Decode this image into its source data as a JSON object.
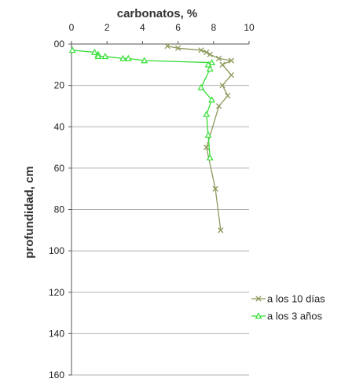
{
  "chart_data": {
    "type": "scatter",
    "xlabel": "carbonatos,  %",
    "ylabel": "profundidad,  cm",
    "xlim": [
      0,
      10
    ],
    "ylim": [
      0,
      160
    ],
    "y_inverted": true,
    "x_axis_position": "top",
    "x_ticks": [
      0,
      2,
      4,
      6,
      8,
      10
    ],
    "y_ticks": [
      0,
      20,
      40,
      60,
      80,
      100,
      120,
      140,
      160
    ],
    "y_tick_labels": [
      "00",
      "20",
      "40",
      "60",
      "80",
      "100",
      "120",
      "140",
      "160"
    ],
    "grid": "horizontal",
    "legend_position": "right",
    "series": [
      {
        "name": "a los 10 días",
        "color": "#8c9a5b",
        "marker": "x",
        "points": [
          {
            "x": 5.4,
            "y": 1
          },
          {
            "x": 6.0,
            "y": 2
          },
          {
            "x": 7.3,
            "y": 3
          },
          {
            "x": 7.6,
            "y": 4
          },
          {
            "x": 7.8,
            "y": 5
          },
          {
            "x": 8.3,
            "y": 7
          },
          {
            "x": 9.0,
            "y": 8
          },
          {
            "x": 8.5,
            "y": 10
          },
          {
            "x": 9.0,
            "y": 15
          },
          {
            "x": 8.5,
            "y": 20
          },
          {
            "x": 8.8,
            "y": 25
          },
          {
            "x": 8.3,
            "y": 30
          },
          {
            "x": 7.6,
            "y": 50
          },
          {
            "x": 8.1,
            "y": 70
          },
          {
            "x": 8.4,
            "y": 90
          }
        ]
      },
      {
        "name": "a los 3 años",
        "color": "#33dd33",
        "marker": "triangle",
        "points": [
          {
            "x": 0.05,
            "y": 3
          },
          {
            "x": 1.3,
            "y": 4
          },
          {
            "x": 1.5,
            "y": 5
          },
          {
            "x": 1.5,
            "y": 6
          },
          {
            "x": 1.9,
            "y": 6
          },
          {
            "x": 2.9,
            "y": 7
          },
          {
            "x": 3.2,
            "y": 7
          },
          {
            "x": 4.1,
            "y": 8
          },
          {
            "x": 7.9,
            "y": 9
          },
          {
            "x": 7.7,
            "y": 10
          },
          {
            "x": 7.8,
            "y": 12
          },
          {
            "x": 7.3,
            "y": 21
          },
          {
            "x": 7.9,
            "y": 27
          },
          {
            "x": 7.6,
            "y": 34
          },
          {
            "x": 7.7,
            "y": 44
          },
          {
            "x": 7.8,
            "y": 55
          }
        ]
      }
    ]
  }
}
